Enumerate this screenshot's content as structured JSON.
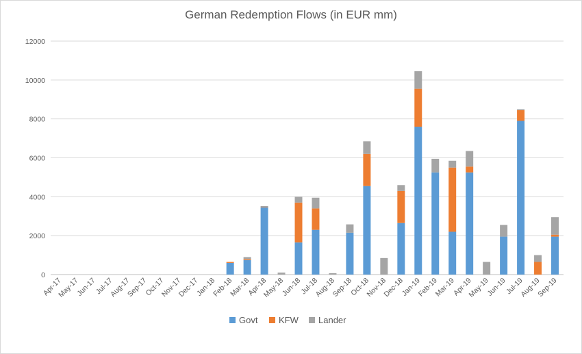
{
  "chart_data": {
    "type": "bar",
    "stacked": true,
    "title": "German Redemption Flows (in EUR mm)",
    "xlabel": "",
    "ylabel": "",
    "ylim": [
      0,
      12000
    ],
    "yticks": [
      0,
      2000,
      4000,
      6000,
      8000,
      10000,
      12000
    ],
    "grid": true,
    "legend_position": "bottom",
    "categories": [
      "Apr-17",
      "May-17",
      "Jun-17",
      "Jul-17",
      "Aug-17",
      "Sep-17",
      "Oct-17",
      "Nov-17",
      "Dec-17",
      "Jan-18",
      "Feb-18",
      "Mar-18",
      "Apr-18",
      "May-18",
      "Jun-18",
      "Jul-18",
      "Aug-18",
      "Sep-18",
      "Oct-18",
      "Nov-18",
      "Dec-18",
      "Jan-19",
      "Feb-19",
      "Mar-19",
      "Apr-19",
      "May-19",
      "Jun-19",
      "Jul-19",
      "Aug-19",
      "Sep-19"
    ],
    "series": [
      {
        "name": "Govt",
        "color": "#5b9bd5",
        "values": [
          0,
          0,
          0,
          0,
          0,
          0,
          0,
          0,
          0,
          0,
          600,
          750,
          3450,
          0,
          1650,
          2300,
          0,
          2150,
          4550,
          0,
          2650,
          7600,
          5250,
          2200,
          5250,
          0,
          1950,
          7900,
          0,
          1950
        ]
      },
      {
        "name": "KFW",
        "color": "#ed7d31",
        "values": [
          0,
          0,
          0,
          0,
          0,
          0,
          0,
          0,
          0,
          0,
          50,
          50,
          20,
          0,
          2050,
          1100,
          0,
          0,
          1650,
          0,
          1650,
          1950,
          0,
          3300,
          300,
          0,
          0,
          550,
          650,
          100
        ]
      },
      {
        "name": "Lander",
        "color": "#a5a5a5",
        "values": [
          0,
          0,
          0,
          0,
          0,
          0,
          0,
          0,
          0,
          0,
          0,
          100,
          50,
          100,
          300,
          550,
          70,
          430,
          650,
          850,
          300,
          900,
          700,
          350,
          800,
          650,
          600,
          50,
          350,
          900
        ]
      }
    ]
  }
}
